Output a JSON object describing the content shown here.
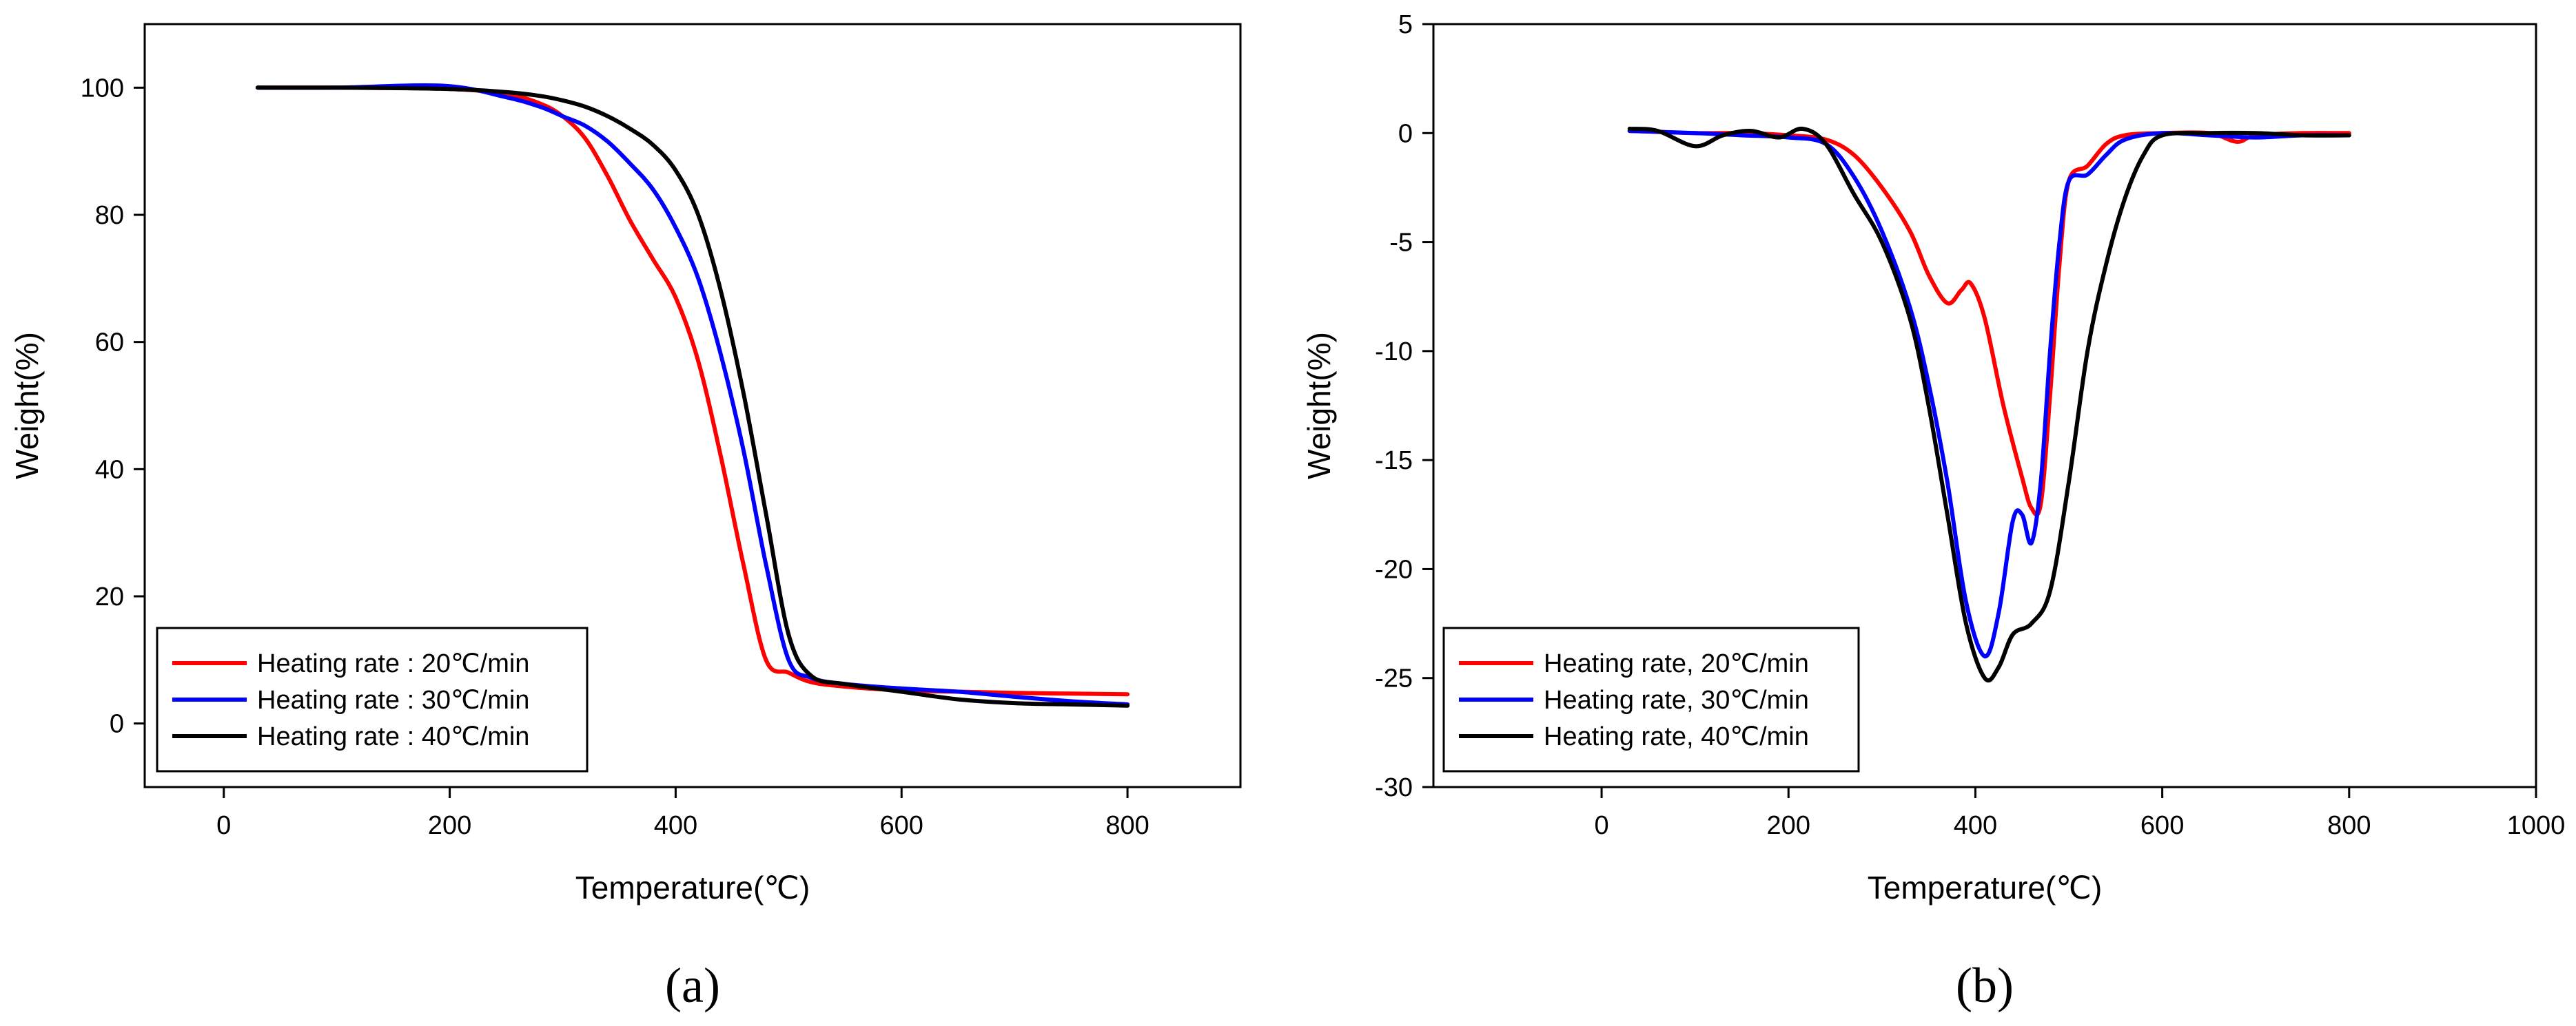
{
  "chart_data": [
    {
      "type": "line",
      "panel_label": "(a)",
      "xlabel": "Temperature(℃)",
      "ylabel": "Weight(%)",
      "xlim": [
        -70,
        900
      ],
      "ylim": [
        -10,
        110
      ],
      "xticks": [
        0,
        200,
        400,
        600,
        800
      ],
      "yticks": [
        0,
        20,
        40,
        60,
        80,
        100
      ],
      "grid": false,
      "legend_position": "bottom-left",
      "series": [
        {
          "name": "Heating rate : 20℃/min",
          "color": "#ff0000",
          "x": [
            30,
            100,
            200,
            250,
            280,
            300,
            320,
            340,
            360,
            380,
            400,
            420,
            440,
            460,
            480,
            500,
            520,
            550,
            600,
            650,
            700,
            750,
            800
          ],
          "y": [
            100,
            100,
            99.8,
            99,
            97.5,
            95.5,
            92,
            86,
            79,
            73,
            67,
            57,
            42,
            25,
            10,
            8,
            6.5,
            5.8,
            5.2,
            5,
            4.8,
            4.7,
            4.6
          ]
        },
        {
          "name": "Heating rate : 30℃/min",
          "color": "#0000ff",
          "x": [
            30,
            100,
            195,
            250,
            280,
            300,
            320,
            340,
            360,
            380,
            400,
            420,
            440,
            460,
            480,
            500,
            520,
            550,
            600,
            650,
            700,
            750,
            800
          ],
          "y": [
            100,
            100,
            100.3,
            98.5,
            97,
            95.5,
            94,
            91.5,
            88,
            84,
            78,
            70,
            58,
            43,
            25,
            10,
            7.2,
            6.2,
            5.5,
            5,
            4.2,
            3.5,
            3
          ]
        },
        {
          "name": "Heating rate : 40℃/min",
          "color": "#000000",
          "x": [
            30,
            100,
            200,
            250,
            280,
            300,
            320,
            340,
            360,
            380,
            400,
            420,
            440,
            460,
            480,
            500,
            520,
            550,
            600,
            650,
            700,
            750,
            800
          ],
          "y": [
            100,
            100,
            99.8,
            99.3,
            98.7,
            98,
            97,
            95.5,
            93.5,
            91,
            87,
            80,
            68,
            52,
            33,
            14,
            7.5,
            6.2,
            5,
            3.8,
            3.2,
            3,
            2.8
          ]
        }
      ]
    },
    {
      "type": "line",
      "panel_label": "(b)",
      "xlabel": "Temperature(℃)",
      "ylabel": "Weight(%)",
      "xlim": [
        -180,
        1000
      ],
      "ylim": [
        -30,
        5
      ],
      "xticks": [
        0,
        200,
        400,
        600,
        800,
        1000
      ],
      "yticks": [
        5,
        0,
        -5,
        -10,
        -15,
        -20,
        -25,
        -30
      ],
      "grid": false,
      "legend_position": "bottom-left",
      "series": [
        {
          "name": "Heating rate, 20℃/min",
          "color": "#ff0000",
          "x": [
            30,
            100,
            150,
            200,
            240,
            270,
            300,
            330,
            350,
            370,
            385,
            395,
            410,
            430,
            450,
            460,
            470,
            480,
            490,
            500,
            520,
            540,
            560,
            600,
            650,
            680,
            700,
            750,
            800
          ],
          "y": [
            0.1,
            0,
            0,
            -0.1,
            -0.3,
            -1,
            -2.5,
            -4.5,
            -6.5,
            -7.8,
            -7.2,
            -6.9,
            -8.5,
            -12.5,
            -15.8,
            -17.2,
            -17,
            -12,
            -6,
            -2.2,
            -1.5,
            -0.5,
            -0.1,
            0,
            0,
            -0.4,
            -0.1,
            0,
            0
          ]
        },
        {
          "name": "Heating rate, 30℃/min",
          "color": "#0000ff",
          "x": [
            30,
            100,
            150,
            200,
            240,
            270,
            300,
            330,
            350,
            370,
            390,
            410,
            425,
            440,
            450,
            460,
            470,
            480,
            490,
            500,
            520,
            540,
            560,
            600,
            650,
            700,
            750,
            800
          ],
          "y": [
            0.1,
            0,
            -0.1,
            -0.2,
            -0.5,
            -2,
            -4.5,
            -8,
            -11.5,
            -16,
            -21.5,
            -24,
            -22,
            -17.8,
            -17.5,
            -18.8,
            -16,
            -10,
            -5,
            -2.2,
            -1.9,
            -1,
            -0.3,
            0,
            -0.1,
            -0.2,
            -0.1,
            -0.1
          ]
        },
        {
          "name": "Heating rate, 40℃/min",
          "color": "#000000",
          "x": [
            30,
            60,
            100,
            130,
            160,
            190,
            215,
            240,
            270,
            300,
            330,
            350,
            370,
            390,
            410,
            425,
            440,
            460,
            480,
            500,
            520,
            540,
            560,
            580,
            600,
            650,
            700,
            750,
            800
          ],
          "y": [
            0.2,
            0.1,
            -0.6,
            -0.1,
            0.1,
            -0.2,
            0.2,
            -0.5,
            -2.8,
            -5,
            -8.5,
            -12.5,
            -17.5,
            -22.5,
            -25,
            -24.5,
            -23,
            -22.5,
            -21,
            -16,
            -10,
            -6,
            -3,
            -1,
            -0.1,
            0,
            0,
            -0.1,
            -0.1
          ]
        }
      ]
    }
  ]
}
